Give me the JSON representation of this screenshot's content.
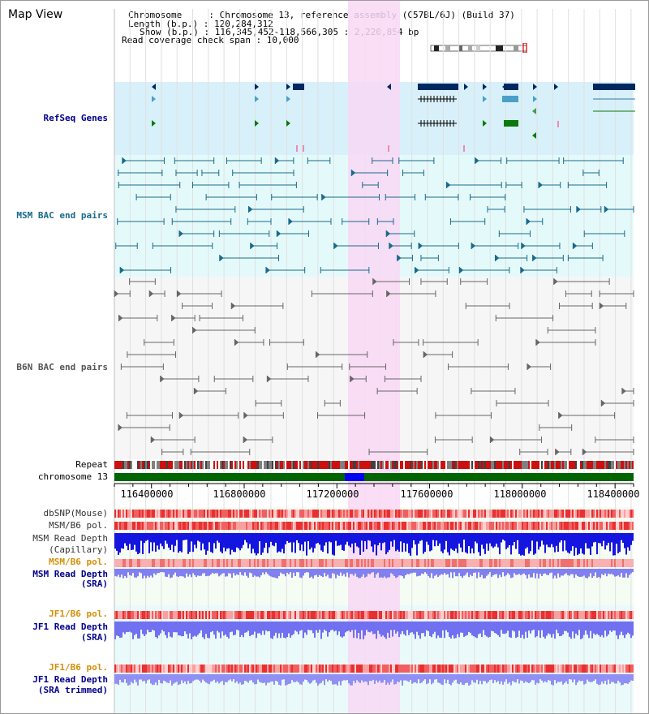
{
  "view_title": "Map View",
  "info": {
    "chromosome": "Chromosome     : Chromosome 13, reference assembly (C57BL/6J) (Build 37)",
    "length": "Length (b.p.) : 120,284,312",
    "show": "Show (b.p.) : 116,345,452-118,566,305 : 2,220,854 bp",
    "coverage": "Read coverage check span : 10,000"
  },
  "tracks": {
    "refseq": "RefSeq Genes",
    "msm_bac": "MSM BAC end pairs",
    "b6n_bac": "B6N BAC end pairs",
    "repeat": "Repeat",
    "chromosome": "chromosome 13",
    "dbsnp": "dbSNP(Mouse)",
    "msm_pol_1": "MSM/B6 pol.",
    "msm_depth_cap_1": "MSM Read Depth",
    "msm_depth_cap_2": "(Capillary)",
    "msm_pol_2": "MSM/B6 pol.",
    "msm_depth_sra_1": "MSM Read Depth",
    "msm_depth_sra_2": "(SRA)",
    "jf1_pol_1": "JF1/B6 pol.",
    "jf1_depth_sra_1": "JF1 Read Depth",
    "jf1_depth_sra_2": "(SRA)",
    "jf1_pol_2": "JF1/B6 pol.",
    "jf1_depth_trim_1": "JF1 Read Depth",
    "jf1_depth_trim_2": "(SRA trimmed)"
  },
  "axis_ticks": [
    "116400000",
    "116800000",
    "117200000",
    "117600000",
    "118000000",
    "118400000"
  ],
  "colors": {
    "highlight": "#f8d8f4",
    "refseq_bg": "#d8f0fa",
    "msm_bg": "#e4fafa",
    "b6n_bg": "#f6f6f6",
    "gene_dark": "#002860",
    "gene_mid": "#4aa0c8",
    "gene_green": "#0a7a0a",
    "msm_line": "#1a6a8a",
    "b6n_line": "#666666",
    "label_blue": "#00008b",
    "label_orange": "#d4900a",
    "chrom_green": "#006400"
  }
}
